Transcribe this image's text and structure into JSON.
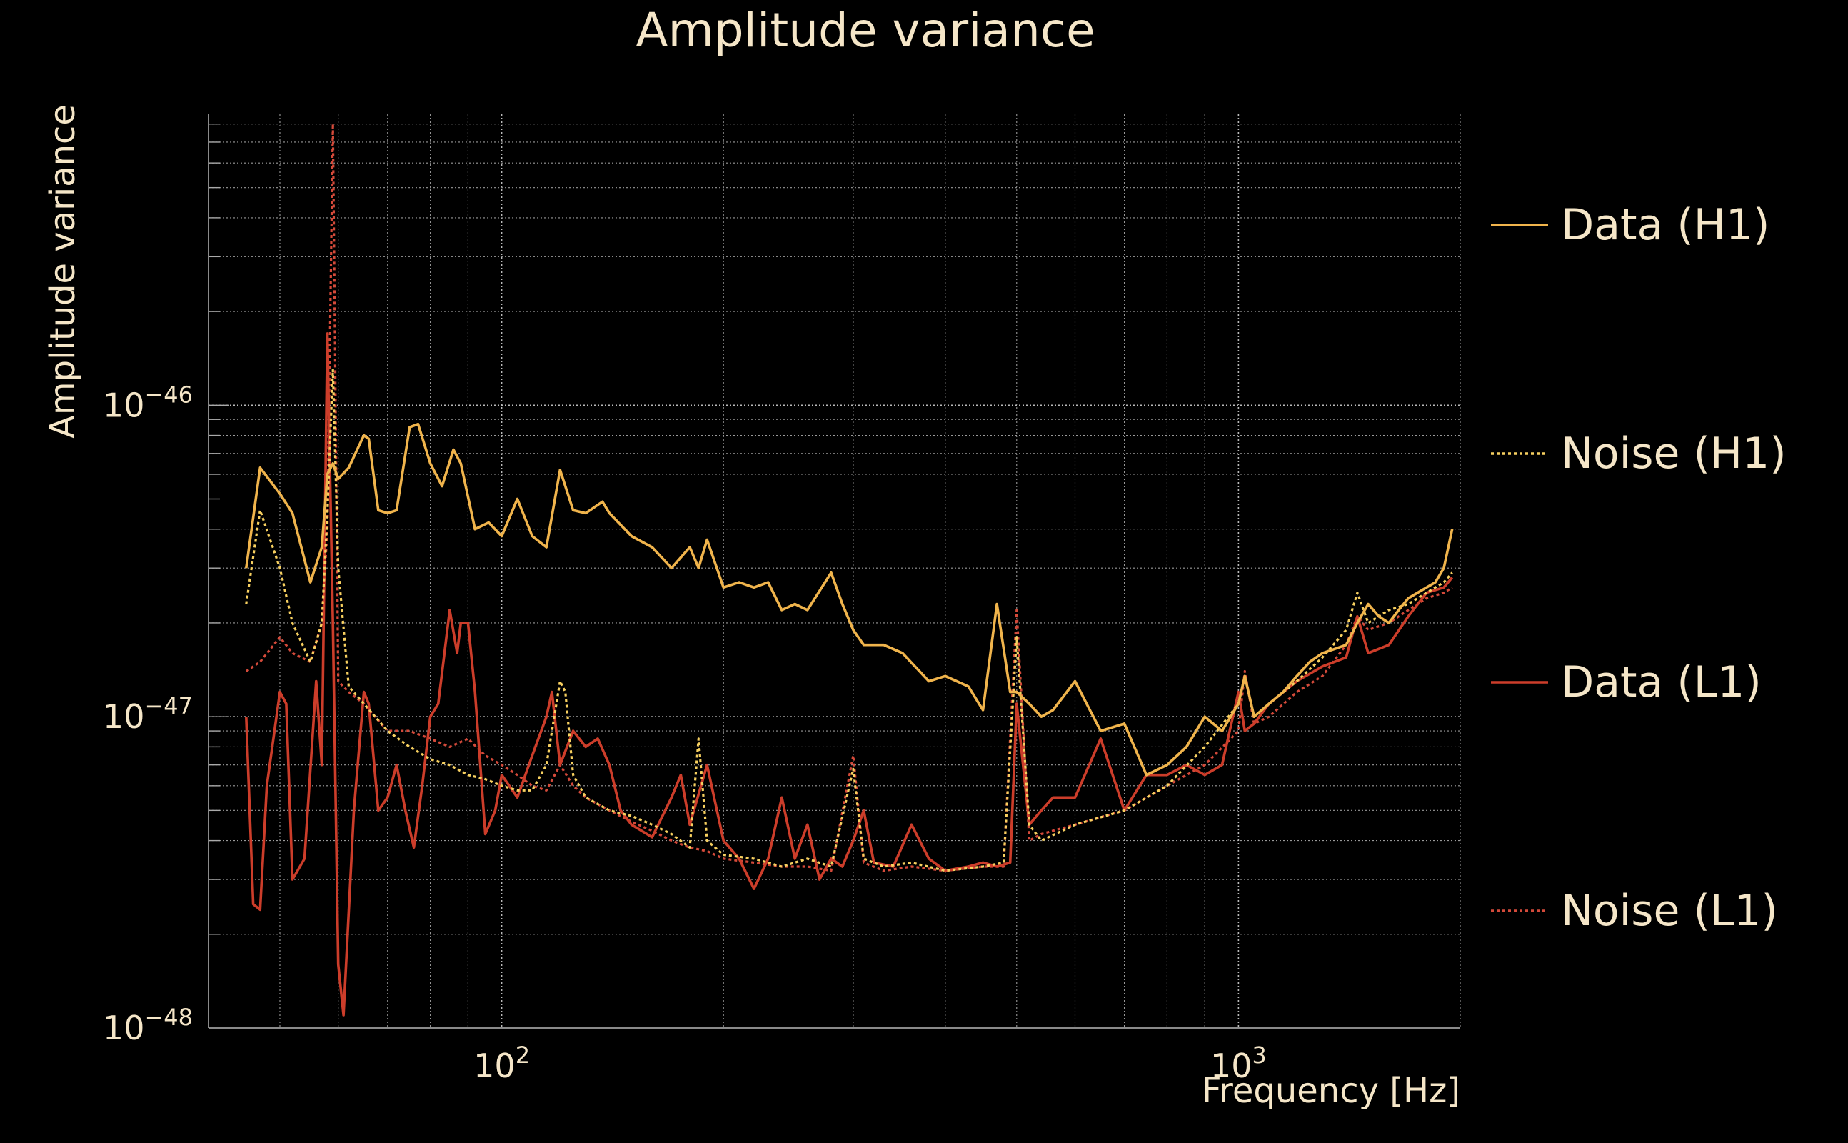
{
  "chart_data": {
    "type": "line",
    "title": "Amplitude variance",
    "xlabel": "Frequency [Hz]",
    "ylabel": "Amplitude variance",
    "xscale": "log",
    "yscale": "log",
    "xlim": [
      40,
      2000
    ],
    "ylim": [
      1e-48,
      8.6e-46
    ],
    "grid": true,
    "legend_position": "right",
    "x_ticks": [
      {
        "value": 100,
        "mantissa": "10",
        "exp": "2"
      },
      {
        "value": 1000,
        "mantissa": "10",
        "exp": "3"
      }
    ],
    "y_ticks": [
      {
        "value": 1e-48,
        "mantissa": "10",
        "exp": "−48"
      },
      {
        "value": 1e-47,
        "mantissa": "10",
        "exp": "−47"
      },
      {
        "value": 1e-46,
        "mantissa": "10",
        "exp": "−46"
      }
    ],
    "series": [
      {
        "name": "Data (H1)",
        "color": "#f0b44c",
        "dash": "solid",
        "x": [
          45,
          47,
          50,
          52,
          55,
          57,
          58,
          59,
          60,
          62,
          65,
          66,
          68,
          70,
          72,
          75,
          77,
          80,
          83,
          86,
          88,
          92,
          96,
          100,
          105,
          110,
          115,
          120,
          125,
          130,
          137,
          140,
          150,
          160,
          170,
          180,
          185,
          190,
          200,
          210,
          220,
          230,
          240,
          250,
          260,
          280,
          290,
          300,
          310,
          330,
          350,
          380,
          400,
          430,
          450,
          470,
          490,
          500,
          520,
          540,
          560,
          600,
          650,
          700,
          750,
          800,
          850,
          900,
          950,
          1000,
          1020,
          1050,
          1100,
          1150,
          1200,
          1250,
          1300,
          1350,
          1400,
          1450,
          1500,
          1550,
          1600,
          1650,
          1700,
          1750,
          1800,
          1850,
          1900,
          1950
        ],
        "y": [
          3e-47,
          6.3e-47,
          5.2e-47,
          4.5e-47,
          2.7e-47,
          3.5e-47,
          6e-47,
          6.5e-47,
          5.8e-47,
          6.3e-47,
          8e-47,
          7.8e-47,
          4.6e-47,
          4.5e-47,
          4.6e-47,
          8.5e-47,
          8.7e-47,
          6.5e-47,
          5.5e-47,
          7.2e-47,
          6.5e-47,
          4e-47,
          4.2e-47,
          3.8e-47,
          5e-47,
          3.8e-47,
          3.5e-47,
          6.2e-47,
          4.6e-47,
          4.5e-47,
          4.9e-47,
          4.5e-47,
          3.8e-47,
          3.5e-47,
          3e-47,
          3.5e-47,
          3e-47,
          3.7e-47,
          2.6e-47,
          2.7e-47,
          2.6e-47,
          2.7e-47,
          2.2e-47,
          2.3e-47,
          2.2e-47,
          2.9e-47,
          2.3e-47,
          1.9e-47,
          1.7e-47,
          1.7e-47,
          1.6e-47,
          1.3e-47,
          1.35e-47,
          1.25e-47,
          1.05e-47,
          2.3e-47,
          1.2e-47,
          1.2e-47,
          1.1e-47,
          1e-47,
          1.05e-47,
          1.3e-47,
          9e-48,
          9.5e-48,
          6.5e-48,
          7e-48,
          8e-48,
          1e-47,
          9e-48,
          1.1e-47,
          1.35e-47,
          1e-47,
          1.1e-47,
          1.2e-47,
          1.35e-47,
          1.5e-47,
          1.6e-47,
          1.65e-47,
          1.7e-47,
          2e-47,
          2.3e-47,
          2.1e-47,
          2e-47,
          2.2e-47,
          2.4e-47,
          2.5e-47,
          2.6e-47,
          2.7e-47,
          3e-47,
          4e-47
        ]
      },
      {
        "name": "Noise (H1)",
        "color": "#f7d060",
        "dash": "dotted",
        "x": [
          45,
          47,
          50,
          52,
          55,
          57,
          58,
          59,
          60,
          62,
          65,
          70,
          75,
          80,
          85,
          90,
          95,
          100,
          105,
          110,
          115,
          120,
          122,
          125,
          130,
          140,
          150,
          160,
          170,
          180,
          185,
          190,
          200,
          220,
          240,
          260,
          280,
          300,
          310,
          330,
          360,
          400,
          450,
          480,
          500,
          520,
          540,
          600,
          700,
          800,
          900,
          1000,
          1020,
          1050,
          1100,
          1200,
          1300,
          1400,
          1450,
          1500,
          1600,
          1700,
          1800,
          1900,
          1950
        ],
        "y": [
          2.3e-47,
          4.6e-47,
          3e-47,
          2e-47,
          1.5e-47,
          2e-47,
          4.5e-47,
          1.3e-46,
          3e-47,
          1.25e-47,
          1.1e-47,
          9e-48,
          8e-48,
          7.3e-48,
          7e-48,
          6.5e-48,
          6.3e-48,
          6e-48,
          5.8e-48,
          5.8e-48,
          7e-48,
          1.3e-47,
          1.2e-47,
          6.5e-48,
          5.5e-48,
          5e-48,
          4.8e-48,
          4.5e-48,
          4.2e-48,
          3.8e-48,
          8.5e-48,
          4e-48,
          3.6e-48,
          3.5e-48,
          3.3e-48,
          3.5e-48,
          3.3e-48,
          6.8e-48,
          3.5e-48,
          3.3e-48,
          3.4e-48,
          3.2e-48,
          3.3e-48,
          3.4e-48,
          1.8e-47,
          4.5e-48,
          4e-48,
          4.5e-48,
          5e-48,
          6e-48,
          8e-48,
          1.1e-47,
          1.35e-47,
          1e-47,
          1.1e-47,
          1.3e-47,
          1.55e-47,
          1.9e-47,
          2.5e-47,
          2e-47,
          2.2e-47,
          2.3e-47,
          2.5e-47,
          2.7e-47,
          2.9e-47
        ]
      },
      {
        "name": "Data (L1)",
        "color": "#cc3d2a",
        "dash": "solid",
        "x": [
          45,
          46,
          47,
          48,
          50,
          51,
          52,
          54,
          56,
          57,
          58,
          59,
          60,
          61,
          63,
          65,
          66,
          68,
          70,
          72,
          74,
          76,
          78,
          80,
          82,
          85,
          87,
          88,
          90,
          92,
          95,
          98,
          100,
          105,
          110,
          115,
          117,
          120,
          125,
          130,
          135,
          140,
          145,
          150,
          160,
          170,
          175,
          180,
          190,
          200,
          210,
          220,
          230,
          240,
          250,
          260,
          270,
          280,
          290,
          300,
          310,
          320,
          340,
          360,
          380,
          400,
          430,
          450,
          470,
          490,
          500,
          520,
          540,
          560,
          580,
          600,
          650,
          700,
          750,
          800,
          850,
          900,
          950,
          1000,
          1020,
          1050,
          1100,
          1200,
          1300,
          1400,
          1450,
          1500,
          1600,
          1700,
          1800,
          1900,
          1950
        ],
        "y": [
          1e-47,
          2.5e-48,
          2.4e-48,
          6e-48,
          1.2e-47,
          1.1e-47,
          3e-48,
          3.5e-48,
          1.3e-47,
          7e-48,
          1.7e-46,
          2e-47,
          1.6e-48,
          1.1e-48,
          5e-48,
          1.2e-47,
          1.1e-47,
          5e-48,
          5.5e-48,
          7e-48,
          5e-48,
          3.8e-48,
          6e-48,
          1e-47,
          1.1e-47,
          2.2e-47,
          1.6e-47,
          2e-47,
          2e-47,
          1.2e-47,
          4.2e-48,
          5e-48,
          6.5e-48,
          5.5e-48,
          7.5e-48,
          1e-47,
          1.2e-47,
          7e-48,
          9e-48,
          8e-48,
          8.5e-48,
          7e-48,
          5e-48,
          4.5e-48,
          4.1e-48,
          5.5e-48,
          6.5e-48,
          4.5e-48,
          7e-48,
          4e-48,
          3.5e-48,
          2.8e-48,
          3.5e-48,
          5.5e-48,
          3.5e-48,
          4.5e-48,
          3e-48,
          3.5e-48,
          3.3e-48,
          4e-48,
          5e-48,
          3.4e-48,
          3.3e-48,
          4.5e-48,
          3.5e-48,
          3.2e-48,
          3.3e-48,
          3.4e-48,
          3.3e-48,
          3.4e-48,
          1.1e-47,
          4.5e-48,
          5e-48,
          5.5e-48,
          5.5e-48,
          5.5e-48,
          8.5e-48,
          5e-48,
          6.5e-48,
          6.5e-48,
          7e-48,
          6.5e-48,
          7e-48,
          1.2e-47,
          9e-48,
          9.5e-48,
          1.1e-47,
          1.3e-47,
          1.45e-47,
          1.55e-47,
          2.1e-47,
          1.6e-47,
          1.7e-47,
          2.1e-47,
          2.5e-47,
          2.6e-47,
          2.8e-47
        ]
      },
      {
        "name": "Noise (L1)",
        "color": "#d44a3a",
        "dash": "dotted",
        "x": [
          45,
          47,
          50,
          52,
          55,
          57,
          58,
          59,
          60,
          62,
          65,
          70,
          75,
          80,
          85,
          90,
          95,
          100,
          105,
          110,
          115,
          120,
          125,
          130,
          140,
          150,
          160,
          170,
          180,
          190,
          200,
          220,
          240,
          260,
          280,
          300,
          310,
          330,
          360,
          400,
          450,
          480,
          500,
          520,
          540,
          600,
          700,
          800,
          900,
          1000,
          1020,
          1050,
          1100,
          1200,
          1300,
          1400,
          1450,
          1500,
          1600,
          1700,
          1800,
          1900,
          1950
        ],
        "y": [
          1.4e-47,
          1.5e-47,
          1.8e-47,
          1.6e-47,
          1.5e-47,
          2e-47,
          4e-47,
          8e-46,
          1.3e-47,
          1.2e-47,
          1.1e-47,
          9e-48,
          9e-48,
          8.5e-48,
          8e-48,
          8.5e-48,
          7.5e-48,
          7e-48,
          6.5e-48,
          6e-48,
          5.8e-48,
          7e-48,
          6e-48,
          5.5e-48,
          5e-48,
          4.6e-48,
          4.3e-48,
          4e-48,
          3.8e-48,
          3.7e-48,
          3.5e-48,
          3.4e-48,
          3.3e-48,
          3.3e-48,
          3.2e-48,
          7.5e-48,
          3.4e-48,
          3.2e-48,
          3.3e-48,
          3.2e-48,
          3.3e-48,
          3.3e-48,
          2.2e-47,
          4e-48,
          4.2e-48,
          4.5e-48,
          5e-48,
          6e-48,
          7e-48,
          9e-48,
          1.4e-47,
          9.5e-48,
          1e-47,
          1.2e-47,
          1.35e-47,
          1.7e-47,
          2.1e-47,
          1.9e-47,
          2e-47,
          2.2e-47,
          2.4e-47,
          2.5e-47,
          2.6e-47
        ]
      }
    ]
  }
}
